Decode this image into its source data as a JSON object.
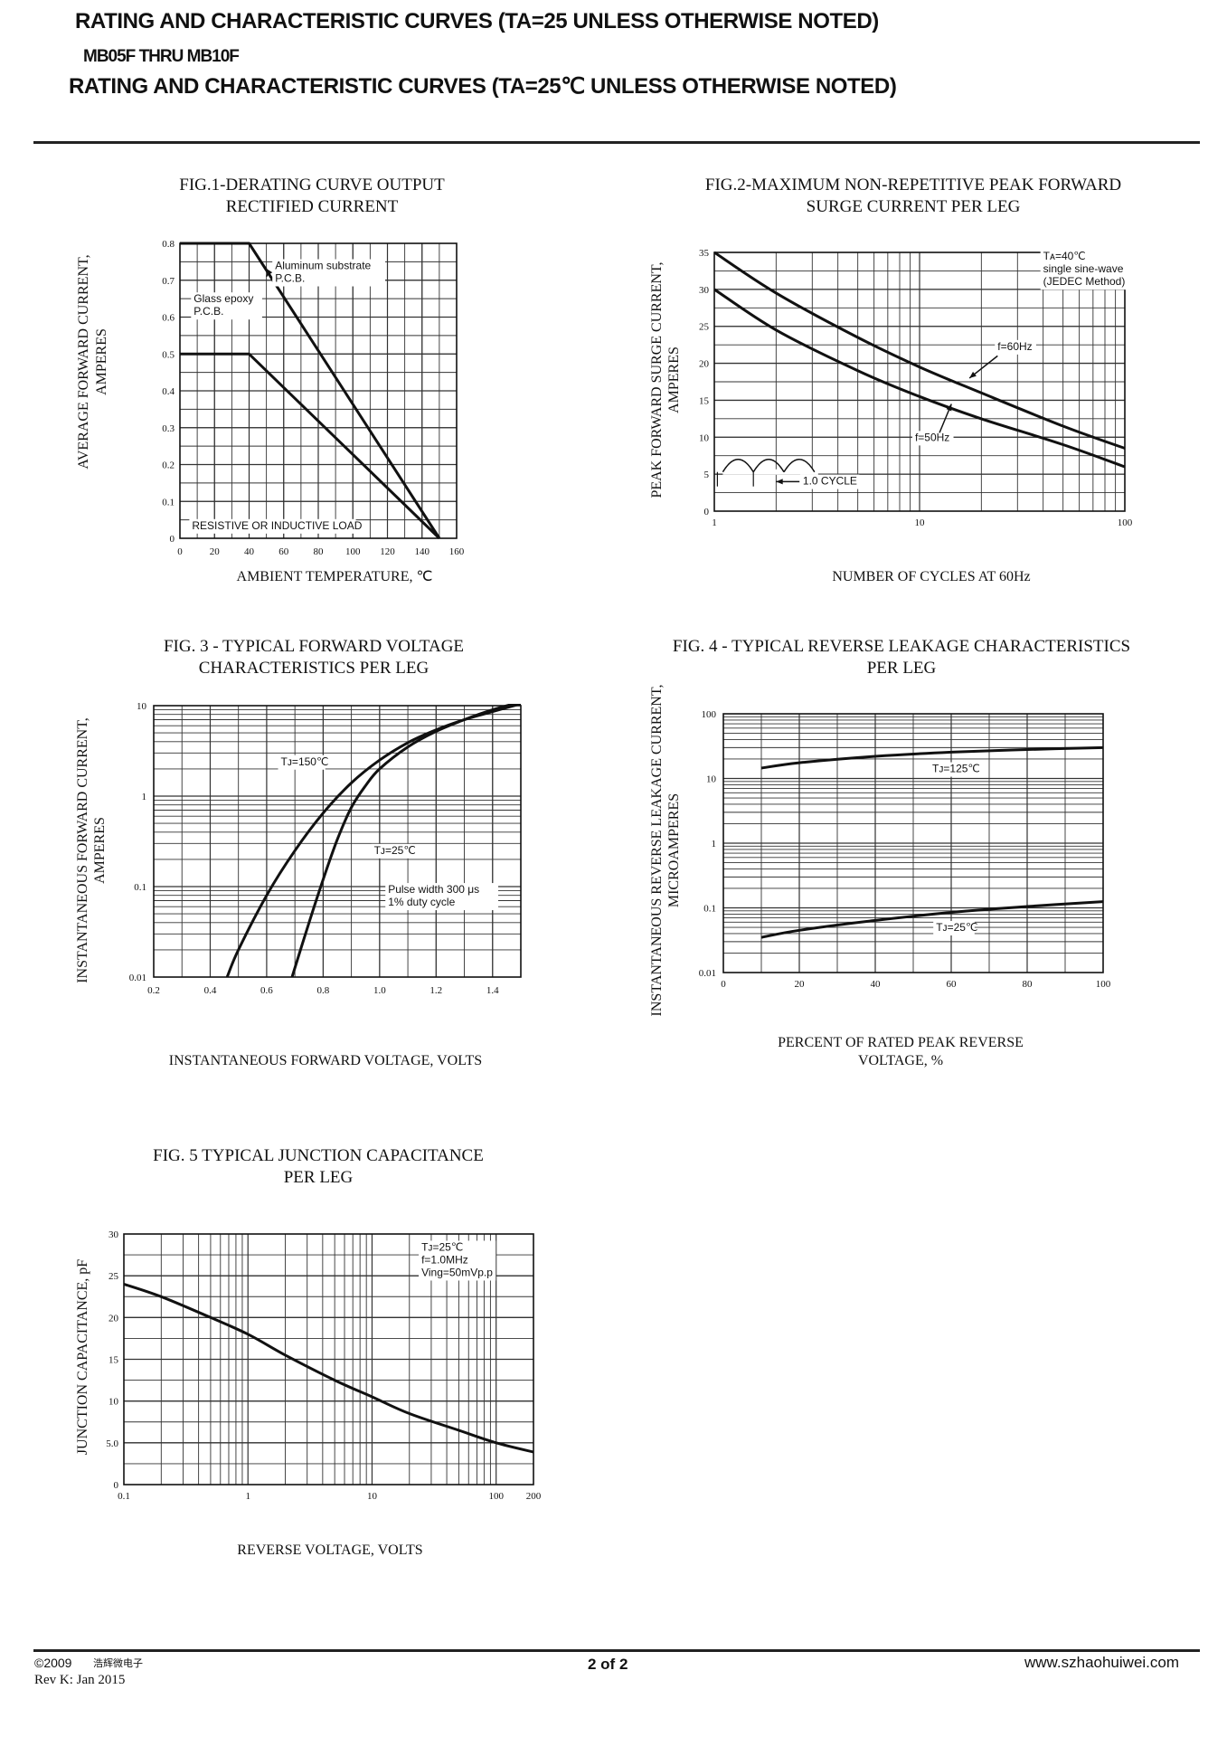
{
  "header": {
    "line1": "RATING AND CHARACTERISTIC CURVES (TA=25      UNLESS OTHERWISE NOTED)",
    "line2": "MB05F THRU MB10F",
    "line3": "RATING AND CHARACTERISTIC CURVES (TA=25℃ UNLESS OTHERWISE NOTED)"
  },
  "footer": {
    "copyright": "©2009",
    "company_cn": "浩辉微电子",
    "revision": "Rev K:  Jan  2015",
    "page": "2 of  2",
    "website": "www.szhaohuiwei.com"
  },
  "colors": {
    "ink": "#111111",
    "grid": "#333333",
    "paper": "#ffffff"
  },
  "chart_data": [
    {
      "id": "fig1",
      "type": "line",
      "title": [
        "FIG.1-DERATING CURVE OUTPUT",
        "RECTIFIED  CURRENT"
      ],
      "xlabel": "AMBIENT TEMPERATURE, ℃",
      "ylabel": [
        "AVERAGE FORWARD CURRENT,",
        "AMPERES"
      ],
      "xscale": "linear",
      "yscale": "linear",
      "xlim": [
        0,
        160
      ],
      "ylim": [
        0,
        0.8
      ],
      "xticks": [
        0,
        20,
        40,
        60,
        80,
        100,
        120,
        140,
        160
      ],
      "xticklabels": [
        "0",
        "20",
        "40",
        "60",
        "80",
        "100",
        "120",
        "140",
        "160"
      ],
      "yticks": [
        0,
        0.1,
        0.2,
        0.3,
        0.4,
        0.5,
        0.6,
        0.7,
        0.8
      ],
      "yticklabels": [
        "0",
        "0.1",
        "0.2",
        "0.3",
        "0.4",
        "0.5",
        "0.6",
        "0.7",
        "0.8"
      ],
      "series": [
        {
          "name": "Aluminum substrate P.C.B.",
          "x": [
            0,
            40,
            150
          ],
          "y": [
            0.8,
            0.8,
            0
          ]
        },
        {
          "name": "Glass epoxy P.C.B.",
          "x": [
            0,
            40,
            150
          ],
          "y": [
            0.5,
            0.5,
            0
          ]
        }
      ],
      "annotations": [
        {
          "text": [
            "Aluminum substrate",
            "P.C.B."
          ],
          "x": 55,
          "y": 0.73,
          "arrow": [
            [
              52,
              0.725
            ],
            [
              50,
              0.71
            ]
          ]
        },
        {
          "text": [
            "Glass epoxy",
            "P.C.B."
          ],
          "x": 8,
          "y": 0.64,
          "arrow": []
        },
        {
          "text": [
            "RESISTIVE OR INDUCTIVE LOAD"
          ],
          "x": 7,
          "y": 0.025,
          "arrow": []
        }
      ]
    },
    {
      "id": "fig2",
      "type": "line",
      "title": [
        "FIG.2-MAXIMUM NON-REPETITIVE PEAK FORWARD",
        "SURGE CURRENT PER LEG"
      ],
      "xlabel": "NUMBER OF CYCLES AT 60Hz",
      "ylabel": [
        "PEAK FORWARD SURGE CURRENT,",
        "AMPERES"
      ],
      "xscale": "log",
      "yscale": "linear",
      "xlim": [
        1,
        100
      ],
      "ylim": [
        0,
        35
      ],
      "xticks": [
        1,
        10,
        100
      ],
      "xticklabels": [
        "1",
        "10",
        "100"
      ],
      "yticks": [
        0,
        5,
        10,
        15,
        20,
        25,
        30,
        35
      ],
      "yticklabels": [
        "0",
        "5",
        "10",
        "15",
        "20",
        "25",
        "30",
        "35"
      ],
      "series": [
        {
          "name": "f=60Hz",
          "x": [
            1,
            2,
            5,
            10,
            20,
            50,
            100
          ],
          "y": [
            35,
            29.5,
            23.5,
            19.5,
            16,
            11.5,
            8.5
          ]
        },
        {
          "name": "f=50Hz",
          "x": [
            1,
            2,
            5,
            10,
            20,
            50,
            100
          ],
          "y": [
            30,
            24.5,
            19,
            15.5,
            12.5,
            9,
            6
          ]
        }
      ],
      "annotations": [
        {
          "text": [
            "Tᴀ=40℃",
            "single sine-wave",
            "(JEDEC Method)"
          ],
          "x": 40,
          "y": 34,
          "arrow": []
        },
        {
          "text": [
            "f=60Hz"
          ],
          "x": 24,
          "y": 21.8,
          "arrow": [
            [
              24,
              21
            ],
            [
              17.5,
              18
            ]
          ]
        },
        {
          "text": [
            "f=50Hz"
          ],
          "x": 9.5,
          "y": 9.5,
          "arrow": [
            [
              12.5,
              10.6
            ],
            [
              14.3,
              14.5
            ]
          ]
        },
        {
          "text": [
            "1.0 CYCLE"
          ],
          "x": 2.7,
          "y": 3.6,
          "arrow": [
            [
              2.6,
              4
            ],
            [
              2.0,
              4
            ]
          ]
        }
      ]
    },
    {
      "id": "fig3",
      "type": "line",
      "title": [
        "FIG. 3 - TYPICAL  FORWARD VOLTAGE",
        "CHARACTERISTICS PER LEG"
      ],
      "xlabel": "INSTANTANEOUS FORWARD VOLTAGE, VOLTS",
      "ylabel": [
        "INSTANTANEOUS FORWARD CURRENT,",
        "AMPERES"
      ],
      "xscale": "linear",
      "yscale": "log",
      "xlim": [
        0.2,
        1.5
      ],
      "ylim": [
        0.01,
        10
      ],
      "xticks": [
        0.2,
        0.4,
        0.6,
        0.8,
        1.0,
        1.2,
        1.4
      ],
      "xticklabels": [
        "0.2",
        "0.4",
        "0.6",
        "0.8",
        "1.0",
        "1.2",
        "1.4"
      ],
      "yticks": [
        0.01,
        0.1,
        1,
        10
      ],
      "yticklabels": [
        "0.01",
        "0.1",
        "1",
        "10"
      ],
      "series": [
        {
          "name": "TJ=150℃",
          "x": [
            0.46,
            0.5,
            0.6,
            0.7,
            0.8,
            0.9,
            1.0,
            1.1,
            1.2,
            1.3,
            1.4,
            1.5
          ],
          "y": [
            0.01,
            0.02,
            0.08,
            0.25,
            0.65,
            1.4,
            2.5,
            3.9,
            5.4,
            7,
            8.6,
            10.5
          ]
        },
        {
          "name": "TJ=25℃",
          "x": [
            0.69,
            0.75,
            0.8,
            0.85,
            0.9,
            0.95,
            1.0,
            1.1,
            1.2,
            1.3,
            1.4,
            1.5
          ],
          "y": [
            0.01,
            0.04,
            0.12,
            0.33,
            0.75,
            1.3,
            2.0,
            3.5,
            5.2,
            7,
            9,
            11
          ]
        }
      ],
      "annotations": [
        {
          "text": [
            "Tᴊ=150℃"
          ],
          "x": 0.65,
          "y": 2.2,
          "arrow": []
        },
        {
          "text": [
            "Tᴊ=25℃"
          ],
          "x": 0.98,
          "y": 0.23,
          "arrow": []
        },
        {
          "text": [
            "Pulse width 300 μs",
            "1% duty cycle"
          ],
          "x": 1.03,
          "y": 0.085,
          "arrow": []
        }
      ]
    },
    {
      "id": "fig4",
      "type": "line",
      "title": [
        "FIG. 4 - TYPICAL REVERSE LEAKAGE CHARACTERISTICS",
        "PER LEG"
      ],
      "xlabel": [
        "PERCENT OF RATED PEAK REVERSE",
        "VOLTAGE, %"
      ],
      "ylabel": [
        "INSTANTANEOUS REVERSE LEAKAGE CURRENT,",
        "MICROAMPERES"
      ],
      "xscale": "linear",
      "yscale": "log",
      "xlim": [
        0,
        100
      ],
      "ylim": [
        0.01,
        100
      ],
      "xticks": [
        0,
        20,
        40,
        60,
        80,
        100
      ],
      "xticklabels": [
        "0",
        "20",
        "40",
        "60",
        "80",
        "100"
      ],
      "yticks": [
        0.01,
        0.1,
        1,
        10,
        100
      ],
      "yticklabels": [
        "0.01",
        "0.1",
        "1",
        "10",
        "100"
      ],
      "series": [
        {
          "name": "TJ=125℃",
          "x": [
            10,
            20,
            40,
            60,
            80,
            100
          ],
          "y": [
            14.5,
            17.5,
            22,
            25.5,
            28,
            30
          ]
        },
        {
          "name": "TJ=25℃",
          "x": [
            10,
            20,
            40,
            60,
            80,
            100
          ],
          "y": [
            0.035,
            0.045,
            0.064,
            0.085,
            0.105,
            0.125
          ]
        }
      ],
      "annotations": [
        {
          "text": [
            "Tᴊ=125℃"
          ],
          "x": 55,
          "y": 12.5,
          "arrow": []
        },
        {
          "text": [
            "Tᴊ=25℃"
          ],
          "x": 56,
          "y": 0.044,
          "arrow": []
        }
      ]
    },
    {
      "id": "fig5",
      "type": "line",
      "title": [
        "FIG. 5  TYPICAL JUNCTION CAPACITANCE",
        "PER LEG"
      ],
      "xlabel": "REVERSE VOLTAGE, VOLTS",
      "ylabel": [
        "JUNCTION CAPACITANCE, pF"
      ],
      "xscale": "log",
      "yscale": "linear",
      "xlim": [
        0.1,
        200
      ],
      "ylim": [
        0,
        30
      ],
      "xticks": [
        0.1,
        1,
        10,
        100,
        200
      ],
      "xticklabels": [
        "0.1",
        "1",
        "10",
        "100",
        "200"
      ],
      "yticks": [
        0,
        5,
        10,
        15,
        20,
        25,
        30
      ],
      "yticklabels": [
        "0",
        "5.0",
        "10",
        "15",
        "20",
        "25",
        "30"
      ],
      "series": [
        {
          "name": "TJ=25℃",
          "x": [
            0.1,
            0.2,
            0.5,
            1,
            2,
            5,
            10,
            20,
            50,
            100,
            200
          ],
          "y": [
            24,
            22.5,
            20,
            18,
            15.5,
            12.5,
            10.5,
            8.5,
            6.5,
            5,
            3.9
          ]
        }
      ],
      "annotations": [
        {
          "text": [
            "Tᴊ=25℃",
            "f=1.0MHz",
            "Ving=50mVp.p"
          ],
          "x": 25,
          "y": 28,
          "arrow": []
        }
      ]
    }
  ]
}
